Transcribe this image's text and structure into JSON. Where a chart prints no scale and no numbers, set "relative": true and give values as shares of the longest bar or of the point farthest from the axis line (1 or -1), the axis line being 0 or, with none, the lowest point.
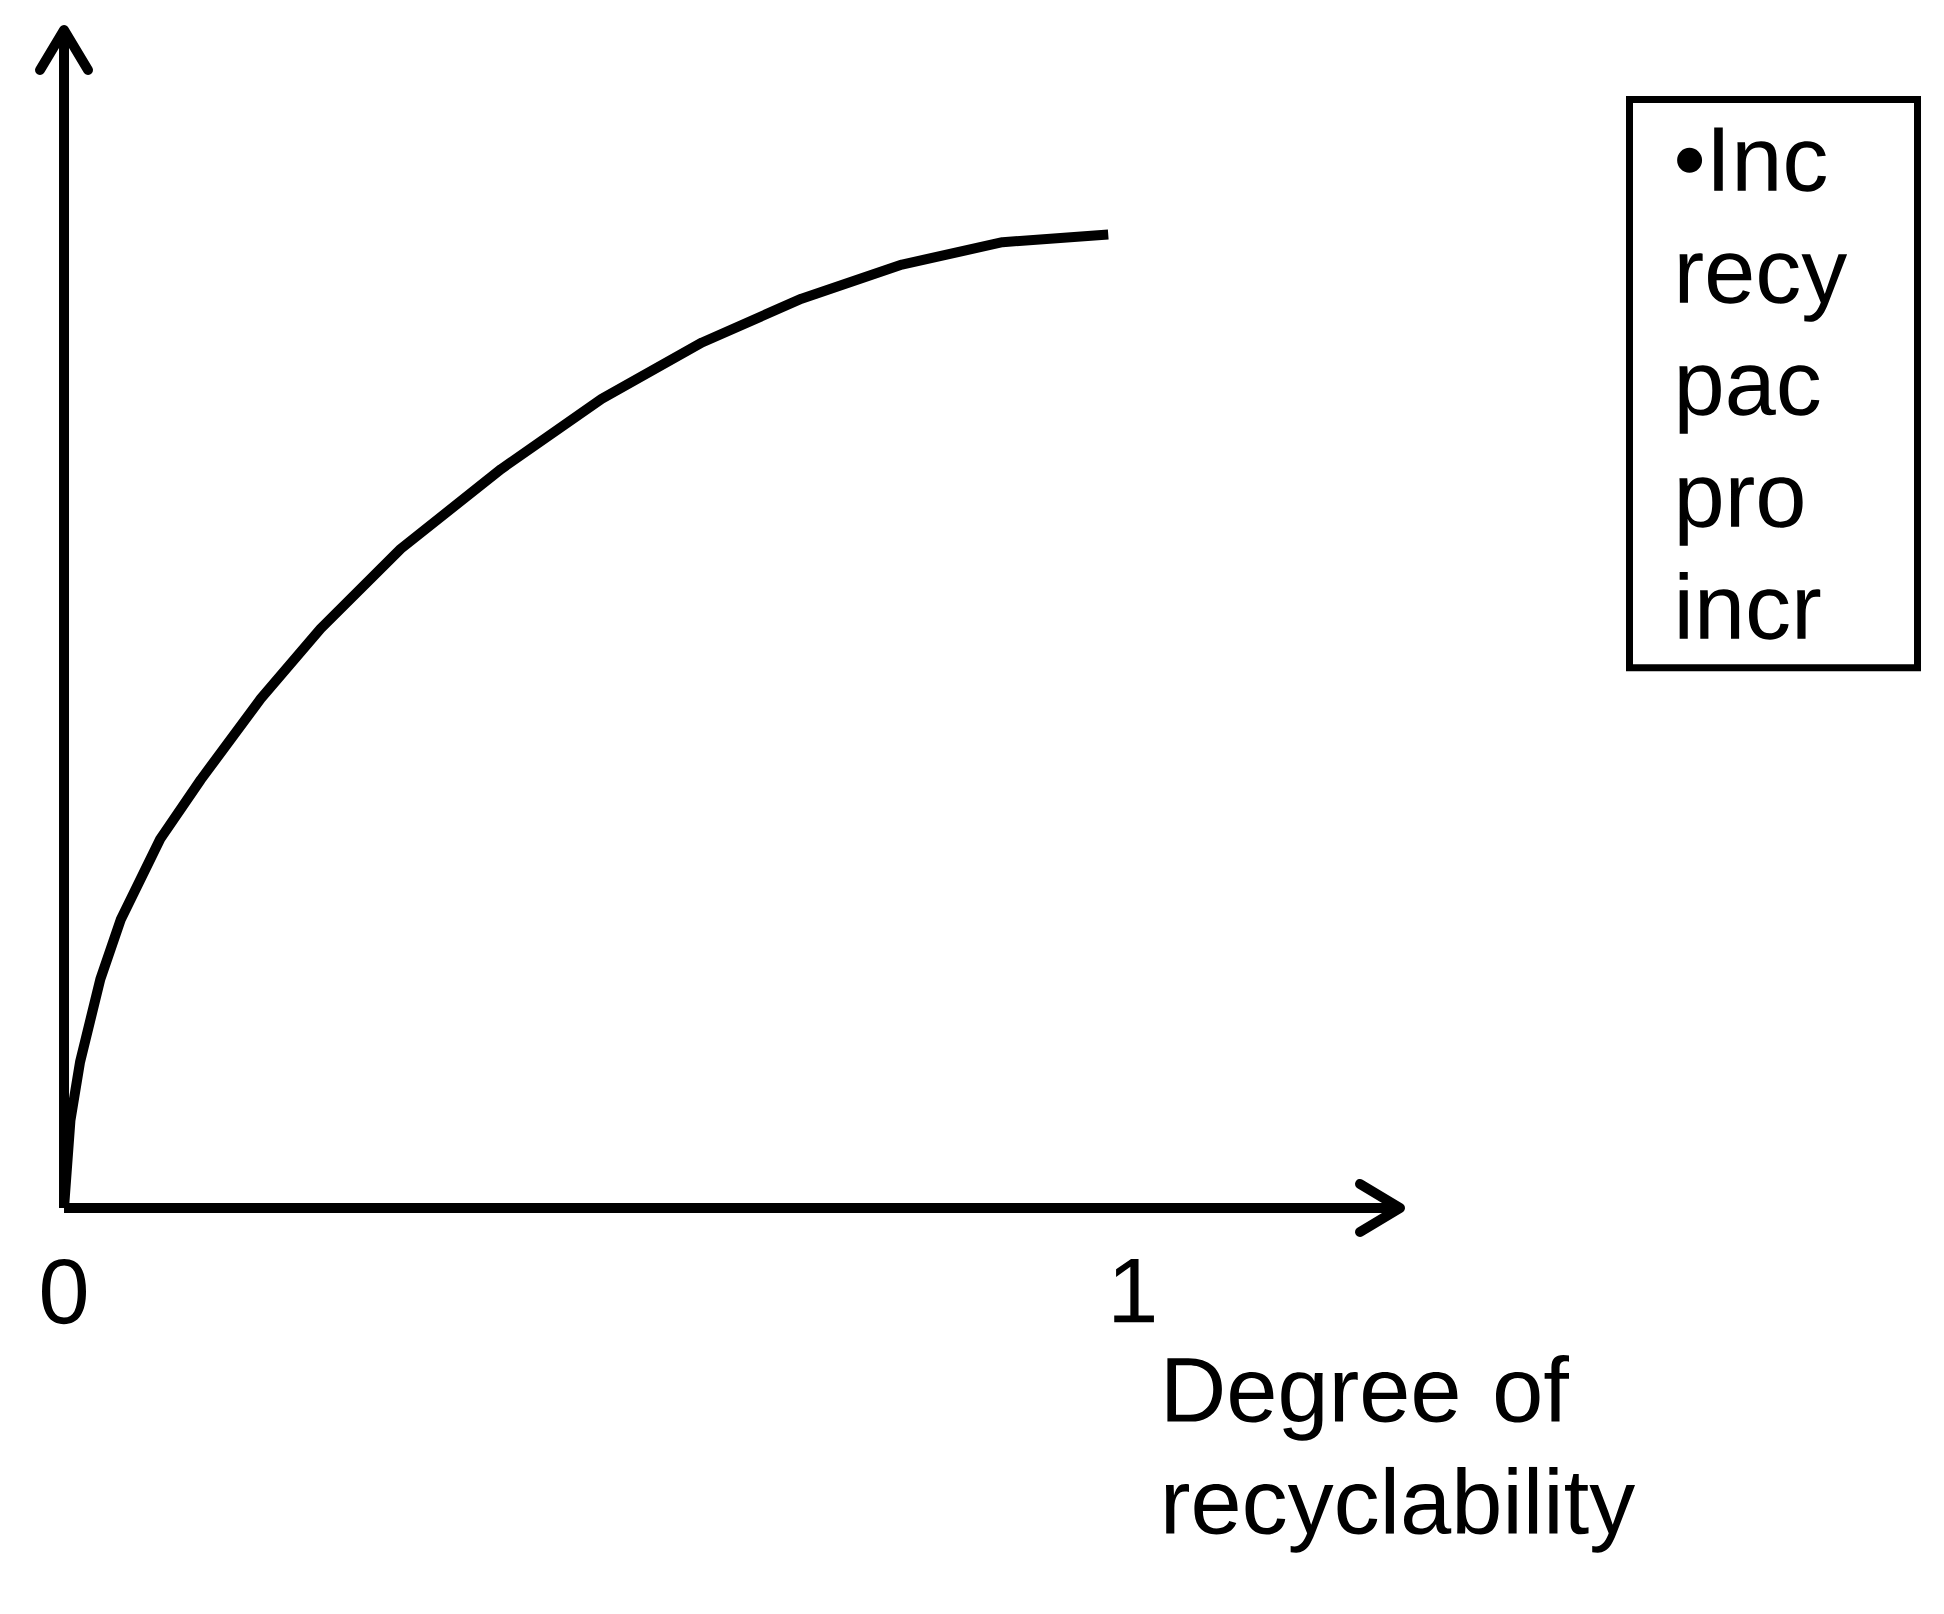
{
  "chart_data": {
    "type": "line",
    "relative": true,
    "xlabel": "Degree of recyclability",
    "xlim": [
      0,
      1.25
    ],
    "xticks": [
      0,
      1
    ],
    "x": [
      0,
      0.006,
      0.015,
      0.034,
      0.053,
      0.09,
      0.128,
      0.184,
      0.24,
      0.315,
      0.409,
      0.503,
      0.597,
      0.69,
      0.784,
      0.878,
      0.977
    ],
    "series": [
      {
        "color": "#000000",
        "values": [
          0,
          0.09,
          0.15,
          0.235,
          0.296,
          0.379,
          0.44,
          0.523,
          0.595,
          0.677,
          0.759,
          0.831,
          0.889,
          0.934,
          0.969,
          0.992,
          1.0
        ]
      }
    ],
    "annotations": [
      "•Inc",
      "recy",
      "pac",
      "pro",
      "incr"
    ],
    "grid": false,
    "marker": "none",
    "line_style": "solid"
  }
}
